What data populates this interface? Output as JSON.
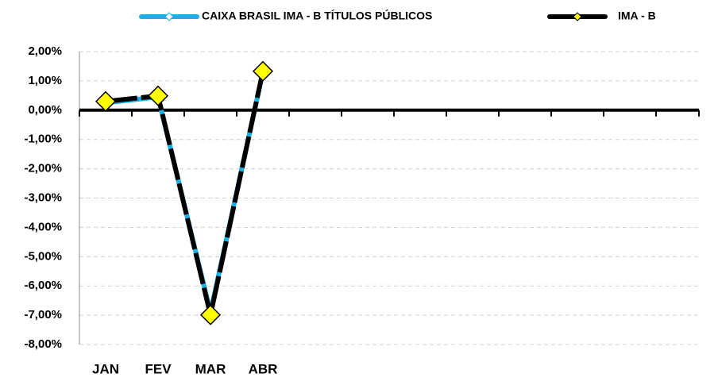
{
  "chart_data": {
    "type": "line",
    "categories": [
      "JAN",
      "FEV",
      "MAR",
      "ABR",
      null,
      null,
      null,
      null,
      null,
      null,
      null,
      null
    ],
    "series": [
      {
        "name": "CAIXA BRASIL IMA - B TÍTULOS PÚBLICOS",
        "color": "#1ab0e8",
        "values": [
          0.25,
          0.45,
          -6.9,
          1.3,
          null,
          null,
          null,
          null,
          null,
          null,
          null,
          null
        ]
      },
      {
        "name": "IMA - B",
        "color": "#000000",
        "marker_color": "#ffff00",
        "values": [
          0.3,
          0.49,
          -6.99,
          1.33,
          null,
          null,
          null,
          null,
          null,
          null,
          null,
          null
        ]
      }
    ],
    "ylim": [
      -8,
      2
    ],
    "yticks": [
      {
        "value": 2,
        "label": "2,00%"
      },
      {
        "value": 1,
        "label": "1,00%"
      },
      {
        "value": 0,
        "label": "0,00%"
      },
      {
        "value": -1,
        "label": "-1,00%"
      },
      {
        "value": -2,
        "label": "-2,00%"
      },
      {
        "value": -3,
        "label": "-3,00%"
      },
      {
        "value": -4,
        "label": "-4,00%"
      },
      {
        "value": -5,
        "label": "-5,00%"
      },
      {
        "value": -6,
        "label": "-6,00%"
      },
      {
        "value": -7,
        "label": "-7,00%"
      },
      {
        "value": -8,
        "label": "-8,00%"
      }
    ],
    "grid": true,
    "legend": "top"
  }
}
